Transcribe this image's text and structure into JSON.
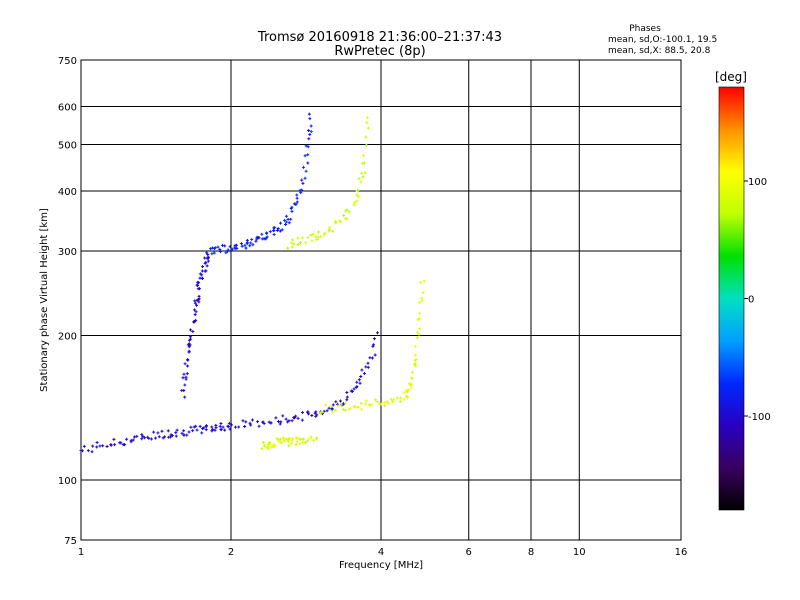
{
  "chart_data": {
    "type": "scatter",
    "title": "Tromsø 20160918 21:36:00–21:37:43",
    "subtitle": "RwPretec (8p)",
    "xlabel": "Frequency [MHz]",
    "ylabel": "Stationary phase Virtual Height [km]",
    "x_scale": "log",
    "y_scale": "log",
    "xlim": [
      1,
      16
    ],
    "ylim": [
      75,
      750
    ],
    "x_ticks": [
      1,
      2,
      4,
      6,
      8,
      10,
      16
    ],
    "y_ticks": [
      75,
      100,
      200,
      300,
      400,
      500,
      600,
      750
    ],
    "grid": true,
    "stats_box": {
      "title": "Phases",
      "line1": "mean, sd,O:-100.1, 19.5",
      "line2": "mean, sd,X:  88.5, 20.8"
    },
    "colorbar": {
      "label": "[deg]",
      "range": [
        -180,
        180
      ],
      "ticks": [
        100,
        0,
        -100
      ],
      "colors": [
        "#000000",
        "#3a0060",
        "#2a00c0",
        "#0028ff",
        "#00a0ff",
        "#00e0c0",
        "#00e000",
        "#c0ff00",
        "#ffff00",
        "#ff9000",
        "#ff0000"
      ]
    },
    "traces": [
      {
        "x": [
          1.0,
          1.1,
          1.2,
          1.3,
          1.4,
          1.5,
          1.6,
          1.7,
          1.8,
          1.9,
          2.0,
          2.2,
          2.4,
          2.6,
          2.8,
          3.0,
          3.2,
          3.4,
          3.6,
          3.8,
          3.95
        ],
        "y": [
          115,
          118,
          120,
          122,
          124,
          125,
          126,
          127,
          128,
          129,
          130,
          131,
          132,
          134,
          136,
          138,
          142,
          148,
          158,
          175,
          205
        ],
        "phase": -100
      },
      {
        "x": [
          1.6,
          1.62,
          1.65,
          1.68,
          1.7,
          1.72,
          1.75,
          1.78,
          1.8
        ],
        "y": [
          150,
          170,
          190,
          210,
          230,
          250,
          270,
          285,
          295
        ],
        "phase": -100
      },
      {
        "x": [
          1.8,
          1.9,
          2.0,
          2.1,
          2.2,
          2.3,
          2.4,
          2.5,
          2.6,
          2.7,
          2.8,
          2.85,
          2.9
        ],
        "y": [
          300,
          302,
          305,
          308,
          312,
          318,
          325,
          335,
          350,
          375,
          420,
          500,
          580
        ],
        "phase": -80
      },
      {
        "x": [
          2.6,
          2.8,
          3.0,
          3.2,
          3.4,
          3.6,
          3.7,
          3.8
        ],
        "y": [
          310,
          315,
          322,
          335,
          355,
          390,
          450,
          600
        ],
        "phase": 80
      },
      {
        "x": [
          3.0,
          3.3,
          3.6,
          3.9,
          4.2,
          4.5,
          4.6,
          4.7,
          4.8,
          4.85
        ],
        "y": [
          140,
          142,
          143,
          144,
          146,
          150,
          160,
          180,
          220,
          270
        ],
        "phase": 90
      },
      {
        "x": [
          2.3,
          2.4,
          2.5,
          2.6,
          2.7,
          2.8,
          3.0
        ],
        "y": [
          118,
          119,
          120,
          120,
          121,
          121,
          122
        ],
        "phase": 85
      }
    ]
  }
}
